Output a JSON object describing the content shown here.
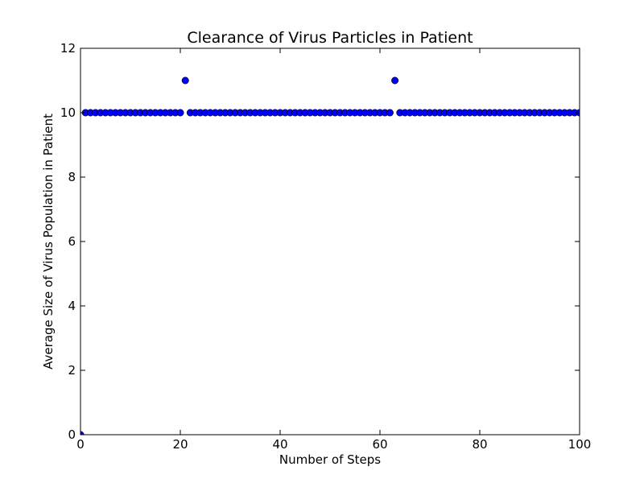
{
  "chart_data": {
    "type": "scatter",
    "title": "Clearance of Virus Particles in Patient",
    "xlabel": "Number of Steps",
    "ylabel": "Average Size of Virus Population in Patient",
    "xlim": [
      0,
      100
    ],
    "ylim": [
      0,
      12
    ],
    "x_ticks": [
      "0",
      "20",
      "40",
      "60",
      "80",
      "100"
    ],
    "y_ticks": [
      "0",
      "2",
      "4",
      "6",
      "8",
      "10",
      "12"
    ],
    "grid": false,
    "legend": "none",
    "marker_color": "#0000ff",
    "marker_edge_color": "#000000",
    "series": [
      {
        "x": [
          0,
          1,
          2,
          3,
          4,
          5,
          6,
          7,
          8,
          9,
          10,
          11,
          12,
          13,
          14,
          15,
          16,
          17,
          18,
          19,
          20,
          21,
          22,
          23,
          24,
          25,
          26,
          27,
          28,
          29,
          30,
          31,
          32,
          33,
          34,
          35,
          36,
          37,
          38,
          39,
          40,
          41,
          42,
          43,
          44,
          45,
          46,
          47,
          48,
          49,
          50,
          51,
          52,
          53,
          54,
          55,
          56,
          57,
          58,
          59,
          60,
          61,
          62,
          63,
          64,
          65,
          66,
          67,
          68,
          69,
          70,
          71,
          72,
          73,
          74,
          75,
          76,
          77,
          78,
          79,
          80,
          81,
          82,
          83,
          84,
          85,
          86,
          87,
          88,
          89,
          90,
          91,
          92,
          93,
          94,
          95,
          96,
          97,
          98,
          99,
          100
        ],
        "y": [
          0,
          10,
          10,
          10,
          10,
          10,
          10,
          10,
          10,
          10,
          10,
          10,
          10,
          10,
          10,
          10,
          10,
          10,
          10,
          10,
          10,
          11,
          10,
          10,
          10,
          10,
          10,
          10,
          10,
          10,
          10,
          10,
          10,
          10,
          10,
          10,
          10,
          10,
          10,
          10,
          10,
          10,
          10,
          10,
          10,
          10,
          10,
          10,
          10,
          10,
          10,
          10,
          10,
          10,
          10,
          10,
          10,
          10,
          10,
          10,
          10,
          10,
          10,
          11,
          10,
          10,
          10,
          10,
          10,
          10,
          10,
          10,
          10,
          10,
          10,
          10,
          10,
          10,
          10,
          10,
          10,
          10,
          10,
          10,
          10,
          10,
          10,
          10,
          10,
          10,
          10,
          10,
          10,
          10,
          10,
          10,
          10,
          10,
          10,
          10,
          10
        ]
      }
    ]
  }
}
